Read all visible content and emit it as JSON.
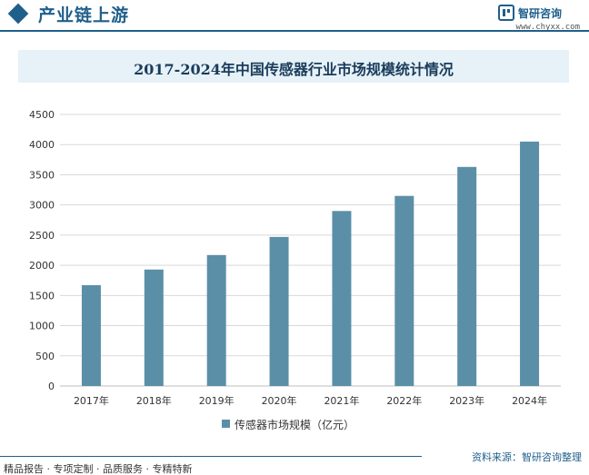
{
  "header": {
    "title": "产业链上游",
    "brand_name": "智研咨询",
    "brand_url": "www.chyxx.com"
  },
  "colors": {
    "accent": "#1f5f8b",
    "bar": "#5b8fa8",
    "title_bg": "#e6f1f8",
    "grid": "#d9d9d9"
  },
  "chart_data": {
    "type": "bar",
    "title": "2017-2024年中国传感器行业市场规模统计情况",
    "categories": [
      "2017年",
      "2018年",
      "2019年",
      "2020年",
      "2021年",
      "2022年",
      "2023年",
      "2024年"
    ],
    "series": [
      {
        "name": "传感器市场规模（亿元）",
        "values": [
          1670,
          1930,
          2170,
          2470,
          2900,
          3150,
          3630,
          4050
        ]
      }
    ],
    "ylim": [
      0,
      4500
    ],
    "yticks": [
      0,
      500,
      1000,
      1500,
      2000,
      2500,
      3000,
      3500,
      4000,
      4500
    ],
    "xlabel": "",
    "ylabel": "",
    "grid": true,
    "legend_position": "bottom"
  },
  "footer": {
    "left": "精品报告 · 专项定制 · 品质服务 · 专精特新",
    "right": "资料来源：智研咨询整理"
  }
}
